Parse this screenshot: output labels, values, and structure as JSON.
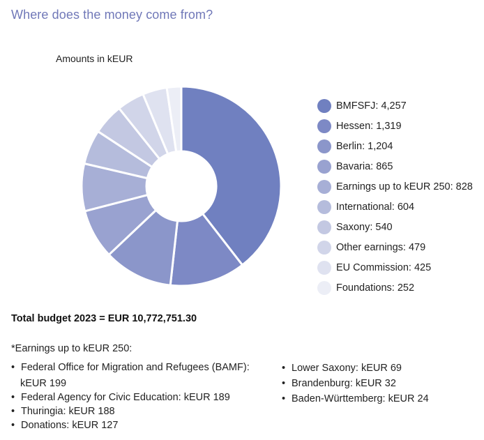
{
  "title": "Where does the money come from?",
  "units_label": "Amounts in kEUR",
  "total": "Total budget 2023 = EUR 10,772,751.30",
  "note": {
    "heading": "*Earnings up to kEUR 250:",
    "left": [
      {
        "line1": "Federal Office for Migration and Refugees (BAMF):",
        "line2": "kEUR 199"
      },
      {
        "line1": "Federal Agency for Civic Education: kEUR 189"
      },
      {
        "line1": "Thuringia: kEUR 188"
      },
      {
        "line1": "Donations: kEUR 127"
      }
    ],
    "right": [
      {
        "line1": "Lower Saxony: kEUR 69"
      },
      {
        "line1": "Brandenburg: kEUR 32"
      },
      {
        "line1": "Baden-Württemberg: kEUR 24"
      }
    ]
  },
  "chart_data": {
    "type": "pie",
    "variant": "donut",
    "units": "kEUR",
    "legend_position": "right",
    "categories": [
      "BMFSFJ",
      "Hessen",
      "Berlin",
      "Bavaria",
      "Earnings up to kEUR 250",
      "International",
      "Saxony",
      "Other earnings",
      "EU Commission",
      "Foundations"
    ],
    "values": [
      4257,
      1319,
      1204,
      865,
      828,
      604,
      540,
      479,
      425,
      252
    ],
    "legend_labels": [
      "BMFSFJ: 4,257",
      "Hessen: 1,319",
      "Berlin: 1,204",
      "Bavaria: 865",
      "Earnings up to kEUR 250: 828",
      "International: 604",
      "Saxony: 540",
      "Other earnings: 479",
      "EU Commission: 425",
      "Foundations: 252"
    ],
    "colors": [
      "#7080c0",
      "#7d89c5",
      "#8b96ca",
      "#99a2d0",
      "#a7afd6",
      "#b5bcdc",
      "#c3c8e2",
      "#d1d5e9",
      "#dfe2f0",
      "#eceef6"
    ]
  }
}
